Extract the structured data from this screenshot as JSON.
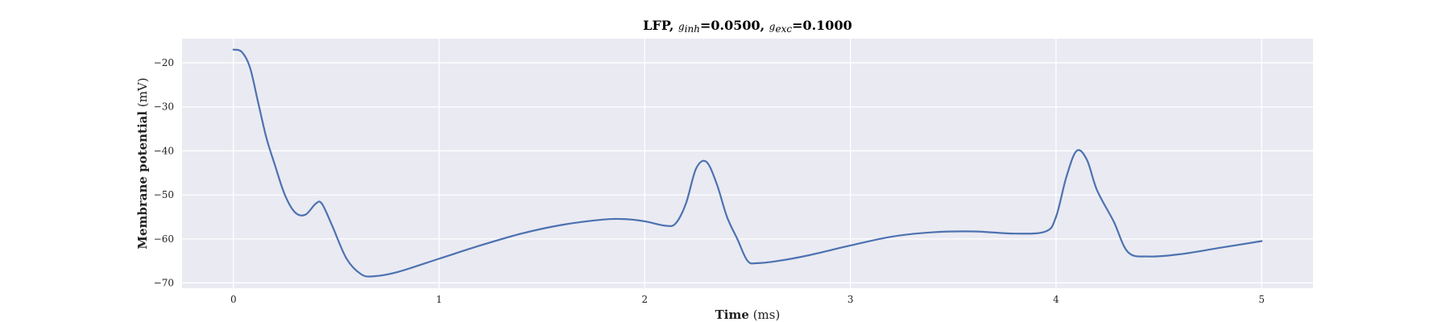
{
  "chart_data": {
    "type": "line",
    "title": {
      "prefix": "LFP, ",
      "g_inh_symbol": "g",
      "g_inh_sub": "inh",
      "g_inh_value": "=0.0500",
      "sep": ", ",
      "g_exc_symbol": "g",
      "g_exc_sub": "exc",
      "g_exc_value": "=0.1000"
    },
    "xlabel": {
      "bold": "Time",
      "unit": "(ms)"
    },
    "ylabel": {
      "bold": "Membrane potential",
      "unit": "(mV)"
    },
    "xlim": [
      -0.25,
      5.25
    ],
    "ylim": [
      -71.2,
      -14.5
    ],
    "xticks": [
      0,
      1,
      2,
      3,
      4,
      5
    ],
    "yticks": [
      -70,
      -60,
      -50,
      -40,
      -30,
      -20
    ],
    "xtick_labels": [
      "0",
      "1",
      "2",
      "3",
      "4",
      "5"
    ],
    "ytick_labels": [
      "−70",
      "−60",
      "−50",
      "−40",
      "−30",
      "−20"
    ],
    "grid": true,
    "series": [
      {
        "color": "#4c72b0",
        "x": [
          0,
          0.04,
          0.08,
          0.12,
          0.16,
          0.2,
          0.25,
          0.3,
          0.35,
          0.4,
          0.43,
          0.48,
          0.55,
          0.62,
          0.68,
          0.8,
          1.0,
          1.2,
          1.4,
          1.6,
          1.8,
          1.9,
          2.0,
          2.1,
          2.15,
          2.2,
          2.25,
          2.3,
          2.35,
          2.4,
          2.45,
          2.5,
          2.55,
          2.65,
          2.8,
          3.0,
          3.2,
          3.4,
          3.6,
          3.8,
          3.95,
          4.0,
          4.05,
          4.1,
          4.15,
          4.2,
          4.28,
          4.35,
          4.45,
          4.6,
          4.8,
          5.0
        ],
        "y": [
          -17.0,
          -17.5,
          -21.0,
          -29.0,
          -37.0,
          -43.0,
          -50.0,
          -54.0,
          -54.5,
          -52.0,
          -52.0,
          -57.0,
          -64.5,
          -68.0,
          -68.5,
          -67.5,
          -64.5,
          -61.5,
          -58.8,
          -56.8,
          -55.6,
          -55.5,
          -56.0,
          -57.0,
          -56.5,
          -52.0,
          -44.0,
          -42.5,
          -47.5,
          -55.0,
          -60.0,
          -65.0,
          -65.5,
          -65.0,
          -63.7,
          -61.5,
          -59.5,
          -58.5,
          -58.3,
          -58.8,
          -58.3,
          -55.0,
          -46.0,
          -40.0,
          -42.0,
          -49.0,
          -56.0,
          -63.0,
          -64.0,
          -63.5,
          -62.0,
          -60.5
        ]
      }
    ]
  }
}
